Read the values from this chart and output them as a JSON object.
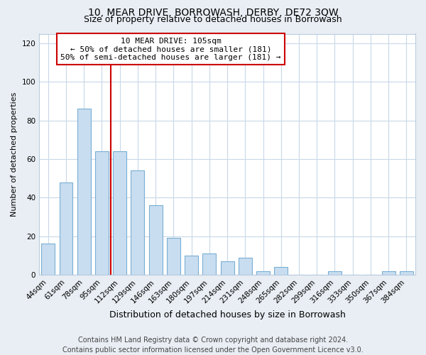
{
  "title": "10, MEAR DRIVE, BORROWASH, DERBY, DE72 3QW",
  "subtitle": "Size of property relative to detached houses in Borrowash",
  "xlabel": "Distribution of detached houses by size in Borrowash",
  "ylabel": "Number of detached properties",
  "bar_labels": [
    "44sqm",
    "61sqm",
    "78sqm",
    "95sqm",
    "112sqm",
    "129sqm",
    "146sqm",
    "163sqm",
    "180sqm",
    "197sqm",
    "214sqm",
    "231sqm",
    "248sqm",
    "265sqm",
    "282sqm",
    "299sqm",
    "316sqm",
    "333sqm",
    "350sqm",
    "367sqm",
    "384sqm"
  ],
  "bar_values": [
    16,
    48,
    86,
    64,
    64,
    54,
    36,
    19,
    10,
    11,
    7,
    9,
    2,
    4,
    0,
    0,
    2,
    0,
    0,
    2,
    2
  ],
  "bar_color": "#c8ddf0",
  "bar_edge_color": "#7aafd4",
  "bar_width": 0.75,
  "ylim": [
    0,
    125
  ],
  "yticks": [
    0,
    20,
    40,
    60,
    80,
    100,
    120
  ],
  "annotation_box_text": "10 MEAR DRIVE: 105sqm\n← 50% of detached houses are smaller (181)\n50% of semi-detached houses are larger (181) →",
  "annotation_box_color": "#ffffff",
  "annotation_box_edgecolor": "#cc0000",
  "red_line_bin": 3,
  "footer_line1": "Contains HM Land Registry data © Crown copyright and database right 2024.",
  "footer_line2": "Contains public sector information licensed under the Open Government Licence v3.0.",
  "background_color": "#e8eef4",
  "plot_background_color": "#ffffff",
  "grid_color": "#c8d8e8",
  "title_fontsize": 10,
  "subtitle_fontsize": 9,
  "xlabel_fontsize": 9,
  "ylabel_fontsize": 8,
  "tick_fontsize": 7.5,
  "footer_fontsize": 7
}
